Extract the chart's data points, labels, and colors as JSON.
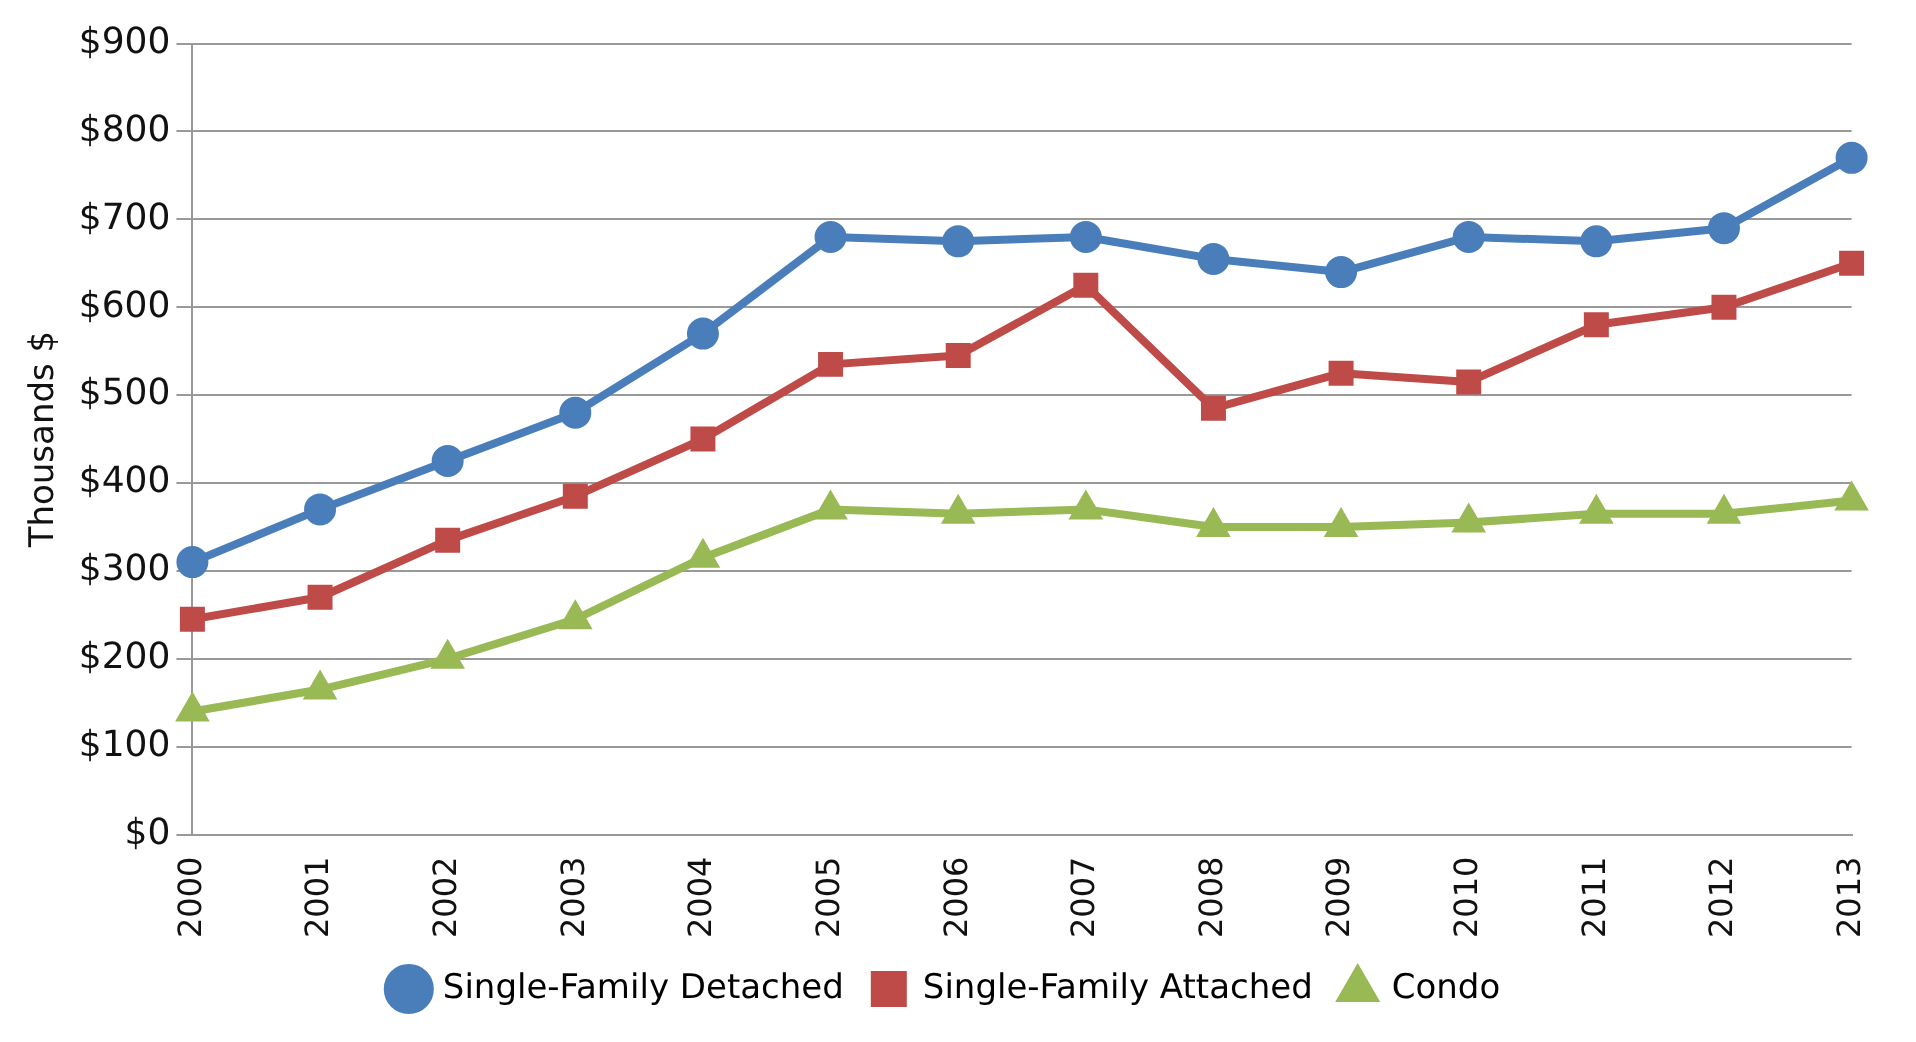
{
  "chart_data": {
    "type": "line",
    "ylabel": "Thousands $",
    "categories": [
      "2000",
      "2001",
      "2002",
      "2003",
      "2004",
      "2005",
      "2006",
      "2007",
      "2008",
      "2009",
      "2010",
      "2011",
      "2012",
      "2013"
    ],
    "series": [
      {
        "name": "Single-Family Detached",
        "color": "#4a7ebb",
        "marker": "circle",
        "values": [
          310,
          370,
          425,
          480,
          570,
          680,
          675,
          680,
          655,
          640,
          680,
          675,
          690,
          770
        ]
      },
      {
        "name": "Single-Family Attached",
        "color": "#be4b48",
        "marker": "square",
        "values": [
          245,
          270,
          335,
          385,
          450,
          535,
          545,
          625,
          485,
          525,
          515,
          580,
          600,
          650
        ]
      },
      {
        "name": "Condo",
        "color": "#98b954",
        "marker": "triangle",
        "values": [
          140,
          165,
          200,
          245,
          315,
          370,
          365,
          370,
          350,
          350,
          355,
          365,
          365,
          380
        ]
      }
    ],
    "ylim": [
      0,
      900
    ],
    "yticks": [
      {
        "value": 0,
        "label": "$0"
      },
      {
        "value": 100,
        "label": "$100"
      },
      {
        "value": 200,
        "label": "$200"
      },
      {
        "value": 300,
        "label": "$300"
      },
      {
        "value": 400,
        "label": "$400"
      },
      {
        "value": 500,
        "label": "$500"
      },
      {
        "value": 600,
        "label": "$600"
      },
      {
        "value": 700,
        "label": "$700"
      },
      {
        "value": 800,
        "label": "$800"
      },
      {
        "value": 900,
        "label": "$900"
      }
    ],
    "grid": "y",
    "legend": "bottom"
  }
}
